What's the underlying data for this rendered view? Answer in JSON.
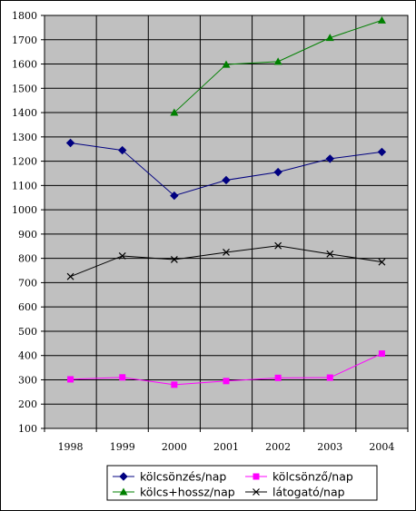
{
  "chart_data": {
    "type": "line",
    "title": "",
    "xlabel": "",
    "ylabel": "",
    "categories": [
      "1998",
      "1999",
      "2000",
      "2001",
      "2002",
      "2003",
      "2004"
    ],
    "ylim": [
      100,
      1800
    ],
    "yticks": [
      100,
      200,
      300,
      400,
      500,
      600,
      700,
      800,
      900,
      1000,
      1100,
      1200,
      1300,
      1400,
      1500,
      1600,
      1700,
      1800
    ],
    "grid": true,
    "plot_background": "#c0c0c0",
    "legend_position": "bottom",
    "series": [
      {
        "name": "kölcsönzés/nap",
        "color": "#000080",
        "marker": "diamond",
        "values": [
          1275,
          1245,
          1058,
          1122,
          1155,
          1210,
          1238
        ]
      },
      {
        "name": "kölcsönző/nap",
        "color": "#ff00ff",
        "marker": "square",
        "values": [
          302,
          310,
          280,
          295,
          308,
          309,
          408
        ]
      },
      {
        "name": "kölcs+hossz/nap",
        "color": "#008000",
        "marker": "triangle",
        "values": [
          null,
          null,
          1400,
          1598,
          1610,
          1708,
          1780
        ]
      },
      {
        "name": "látogató/nap",
        "color": "#000000",
        "marker": "x",
        "values": [
          725,
          810,
          795,
          825,
          852,
          818,
          785
        ]
      }
    ]
  }
}
